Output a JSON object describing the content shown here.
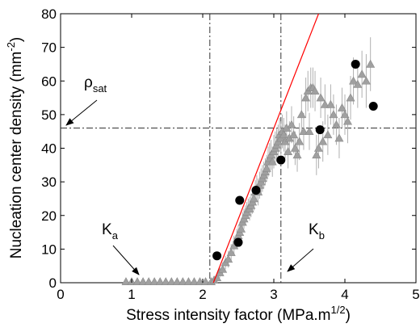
{
  "chart_data": {
    "type": "scatter",
    "xlabel": "Stress intensity factor (MPa.m",
    "xlabel_sup": "1/2",
    "xlabel_end": ")",
    "ylabel": "Nucleation center density (mm",
    "ylabel_sup": "-2",
    "ylabel_end": ")",
    "xlim": [
      0,
      5
    ],
    "ylim": [
      0,
      80
    ],
    "xticks": [
      "0",
      "1",
      "2",
      "3",
      "4",
      "5"
    ],
    "yticks": [
      "0",
      "10",
      "20",
      "30",
      "40",
      "50",
      "60",
      "70",
      "80"
    ],
    "grid": false,
    "series": [
      {
        "marker": "triangle",
        "color": "#a0a0a0",
        "error_bars": true,
        "points": [
          [
            0.92,
            0.3,
            0
          ],
          [
            1.0,
            0.3,
            0
          ],
          [
            1.08,
            0.3,
            0
          ],
          [
            1.16,
            0.3,
            0
          ],
          [
            1.24,
            0.3,
            0
          ],
          [
            1.32,
            0.3,
            0
          ],
          [
            1.4,
            0.3,
            0
          ],
          [
            1.48,
            0.3,
            0
          ],
          [
            1.56,
            0.3,
            0
          ],
          [
            1.64,
            0.3,
            0
          ],
          [
            1.72,
            0.3,
            0
          ],
          [
            1.8,
            0.3,
            0
          ],
          [
            1.88,
            0.3,
            0
          ],
          [
            1.96,
            0.3,
            0
          ],
          [
            2.04,
            0.3,
            0
          ],
          [
            2.12,
            0.3,
            0.5
          ],
          [
            2.16,
            0.8,
            1
          ],
          [
            2.2,
            1.5,
            1
          ],
          [
            2.24,
            3,
            1.5
          ],
          [
            2.28,
            4,
            2
          ],
          [
            2.32,
            6,
            2
          ],
          [
            2.36,
            7,
            2.5
          ],
          [
            2.4,
            9,
            2.5
          ],
          [
            2.44,
            11,
            3
          ],
          [
            2.48,
            13,
            3
          ],
          [
            2.5,
            14,
            3
          ],
          [
            2.52,
            15,
            3
          ],
          [
            2.54,
            16,
            3
          ],
          [
            2.56,
            18,
            3
          ],
          [
            2.58,
            19,
            3
          ],
          [
            2.6,
            20,
            3
          ],
          [
            2.62,
            21,
            3
          ],
          [
            2.64,
            22,
            3
          ],
          [
            2.66,
            22,
            3.5
          ],
          [
            2.68,
            23,
            3.5
          ],
          [
            2.7,
            24,
            3.5
          ],
          [
            2.72,
            25,
            3.5
          ],
          [
            2.74,
            27,
            3.5
          ],
          [
            2.76,
            28,
            4
          ],
          [
            2.78,
            27,
            4
          ],
          [
            2.8,
            29,
            4
          ],
          [
            2.82,
            30,
            4
          ],
          [
            2.84,
            31,
            4
          ],
          [
            2.86,
            32,
            4
          ],
          [
            2.88,
            33,
            4
          ],
          [
            2.9,
            34,
            4
          ],
          [
            2.92,
            36,
            4.5
          ],
          [
            2.94,
            37,
            4.5
          ],
          [
            2.96,
            38,
            4.5
          ],
          [
            2.98,
            36,
            4.5
          ],
          [
            3.0,
            39,
            5
          ],
          [
            3.02,
            40,
            5
          ],
          [
            3.04,
            41,
            5
          ],
          [
            3.06,
            42,
            5
          ],
          [
            3.08,
            44,
            5
          ],
          [
            3.1,
            43,
            5
          ],
          [
            3.12,
            45,
            5
          ],
          [
            3.14,
            44,
            5
          ],
          [
            3.16,
            42,
            5
          ],
          [
            3.18,
            46,
            5
          ],
          [
            3.2,
            39,
            5
          ],
          [
            3.22,
            43,
            5
          ],
          [
            3.25,
            47,
            5.5
          ],
          [
            3.28,
            44,
            5.5
          ],
          [
            3.3,
            40,
            5
          ],
          [
            3.33,
            38,
            5
          ],
          [
            3.36,
            42,
            5.5
          ],
          [
            3.39,
            50,
            6
          ],
          [
            3.42,
            45,
            5.5
          ],
          [
            3.45,
            55,
            6
          ],
          [
            3.48,
            57,
            6
          ],
          [
            3.5,
            45,
            5.5
          ],
          [
            3.52,
            58,
            6
          ],
          [
            3.55,
            58,
            6
          ],
          [
            3.58,
            57,
            6
          ],
          [
            3.6,
            38,
            6
          ],
          [
            3.63,
            40,
            6
          ],
          [
            3.66,
            55,
            6
          ],
          [
            3.69,
            42,
            6
          ],
          [
            3.72,
            53,
            6
          ],
          [
            3.76,
            44,
            6
          ],
          [
            3.8,
            53,
            6
          ],
          [
            3.84,
            50,
            6
          ],
          [
            3.88,
            47,
            6
          ],
          [
            3.92,
            43,
            6
          ],
          [
            3.96,
            52,
            6
          ],
          [
            4.0,
            50,
            6
          ],
          [
            4.04,
            48,
            6.5
          ],
          [
            4.08,
            55,
            6.5
          ],
          [
            4.12,
            60,
            7
          ],
          [
            4.18,
            59,
            7
          ],
          [
            4.24,
            62,
            7
          ],
          [
            4.3,
            60,
            8
          ],
          [
            4.36,
            65,
            8
          ]
        ]
      },
      {
        "marker": "circle",
        "color": "#000000",
        "points": [
          [
            2.2,
            8
          ],
          [
            2.5,
            12
          ],
          [
            2.52,
            24.5
          ],
          [
            2.75,
            27.5
          ],
          [
            3.1,
            36.5
          ],
          [
            3.65,
            45.5
          ],
          [
            4.15,
            65
          ],
          [
            4.4,
            52.5
          ]
        ]
      },
      {
        "kind": "fit-line",
        "color": "#ff0000",
        "points": [
          [
            2.15,
            0
          ],
          [
            3.63,
            80
          ]
        ]
      }
    ],
    "reference_lines": {
      "vertical": [
        2.1,
        3.1
      ],
      "horizontal": [
        46
      ]
    },
    "annotations": {
      "rho": "ρ",
      "rho_sub": "sat",
      "ka": "K",
      "ka_sub": "a",
      "kb": "K",
      "kb_sub": "b"
    }
  }
}
